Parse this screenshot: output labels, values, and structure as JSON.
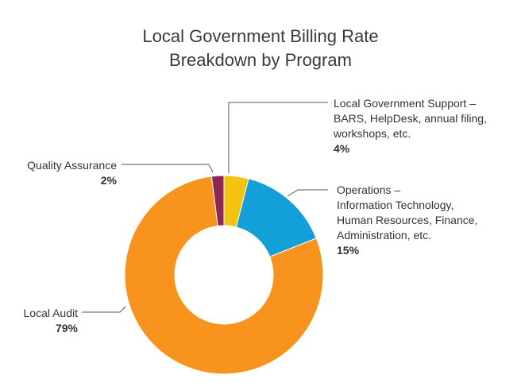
{
  "chart_data": {
    "type": "pie",
    "title_lines": [
      "Local Government Billing Rate",
      "Breakdown by Program"
    ],
    "donut": true,
    "slices": [
      {
        "name": "Local Government Support – BARS, HelpDesk, annual filing, workshops, etc.",
        "label_lines": [
          "Local Government Support –",
          "BARS, HelpDesk, annual filing,",
          "workshops, etc."
        ],
        "value": 4,
        "pct_label": "4%",
        "color": "#f4c30f"
      },
      {
        "name": "Operations – Information Technology, Human Resources, Finance, Administration, etc.",
        "label_lines": [
          "Operations –",
          "Information Technology,",
          "Human Resources, Finance,",
          "Administration, etc."
        ],
        "value": 15,
        "pct_label": "15%",
        "color": "#139fd7"
      },
      {
        "name": "Local Audit",
        "label_lines": [
          "Local Audit"
        ],
        "value": 79,
        "pct_label": "79%",
        "color": "#f8941e"
      },
      {
        "name": "Quality Assurance",
        "label_lines": [
          "Quality Assurance"
        ],
        "value": 2,
        "pct_label": "2%",
        "color": "#8e2752"
      }
    ]
  }
}
